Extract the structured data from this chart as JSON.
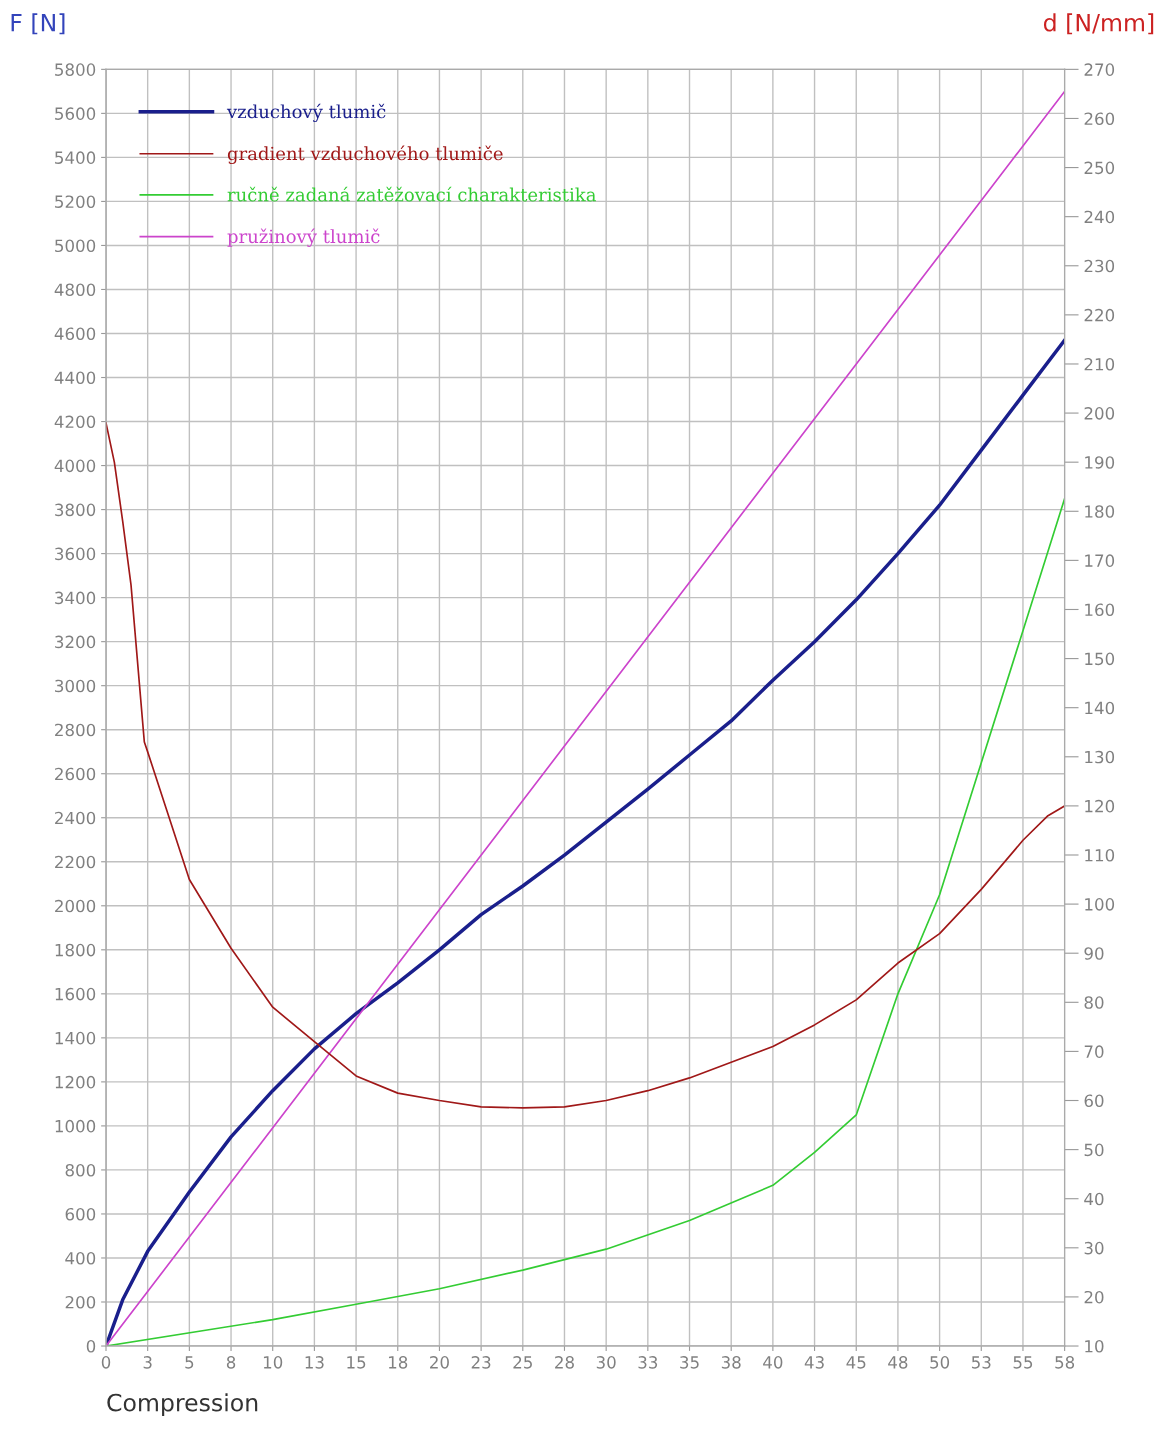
{
  "chart_data": {
    "type": "line",
    "xlabel": "Compression",
    "ylabel": "F [N]",
    "y2label": "d [N/mm]",
    "series": [
      {
        "name": "vzduchový tlumič",
        "color": "#1a1f8c",
        "x": [
          0,
          1,
          2.5,
          5,
          7.5,
          10,
          12.5,
          15,
          17.5,
          20,
          22.5,
          25,
          27.5,
          30,
          32.5,
          35,
          37.5,
          40,
          42.5,
          45,
          47.5,
          50,
          52.5,
          55,
          57.5
        ],
        "values": [
          0,
          210,
          430,
          700,
          950,
          1160,
          1350,
          1510,
          1650,
          1800,
          1960,
          2090,
          2230,
          2380,
          2530,
          2685,
          2840,
          3025,
          3200,
          3390,
          3600,
          3820,
          4070,
          4320,
          4570
        ]
      },
      {
        "name": "gradient vzduchového tlumiče",
        "color": "#a01818",
        "axis": "y2",
        "x": [
          0,
          0.5,
          1,
          1.5,
          2.3,
          2.5,
          5,
          7.5,
          10,
          12.5,
          15,
          17.5,
          20,
          22.5,
          25,
          27.5,
          30,
          32.5,
          35,
          37.5,
          40,
          42.5,
          45,
          47.5,
          50,
          52.5,
          55,
          56.5,
          57.5
        ],
        "values": [
          198,
          190,
          178,
          165,
          133,
          131,
          105,
          91,
          79,
          72,
          65,
          61.5,
          60,
          58.7,
          58.5,
          58.7,
          60,
          62,
          64.6,
          67.8,
          71,
          75.4,
          80.5,
          88,
          94,
          103,
          113,
          118,
          120
        ]
      },
      {
        "name": "ručně zadaná zatěžovací charakteristika",
        "color": "#33cc33",
        "x": [
          0,
          10,
          15,
          20,
          25,
          30,
          35,
          40,
          42.5,
          45,
          47.5,
          50,
          52.5,
          55,
          57.5
        ],
        "values": [
          0,
          120,
          190,
          260,
          345,
          440,
          570,
          730,
          880,
          1050,
          1600,
          2050,
          2650,
          3250,
          3850
        ]
      },
      {
        "name": "pružinový tlumič",
        "color": "#cc44cc",
        "x": [
          0,
          57.5
        ],
        "values": [
          0,
          5700
        ]
      }
    ],
    "xlim": [
      0,
      57.5
    ],
    "xticks": [
      0,
      {
        "value": 2.5,
        "label": "3"
      },
      5,
      {
        "value": 7.5,
        "label": "8"
      },
      10,
      {
        "value": 12.5,
        "label": "13"
      },
      15,
      {
        "value": 17.5,
        "label": "18"
      },
      20,
      {
        "value": 22.5,
        "label": "23"
      },
      25,
      {
        "value": 27.5,
        "label": "28"
      },
      30,
      {
        "value": 32.5,
        "label": "33"
      },
      35,
      {
        "value": 37.5,
        "label": "38"
      },
      40,
      {
        "value": 42.5,
        "label": "43"
      },
      45,
      {
        "value": 47.5,
        "label": "48"
      },
      50,
      {
        "value": 52.5,
        "label": "53"
      },
      55,
      {
        "value": 57.5,
        "label": "58"
      }
    ],
    "ylim": [
      0,
      5800
    ],
    "yticks": [
      0,
      200,
      400,
      600,
      800,
      1000,
      1200,
      1400,
      1600,
      1800,
      2000,
      2200,
      2400,
      2600,
      2800,
      3000,
      3200,
      3400,
      3600,
      3800,
      4000,
      4200,
      4400,
      4600,
      4800,
      5000,
      5200,
      5400,
      5600,
      5800
    ],
    "y2lim": [
      10,
      270
    ],
    "y2ticks": [
      10,
      20,
      30,
      40,
      50,
      60,
      70,
      80,
      90,
      100,
      110,
      120,
      130,
      140,
      150,
      160,
      170,
      180,
      190,
      200,
      210,
      220,
      230,
      240,
      250,
      260,
      270
    ],
    "grid": true,
    "legend": "top left",
    "marker": "none",
    "line_style": "solid"
  }
}
